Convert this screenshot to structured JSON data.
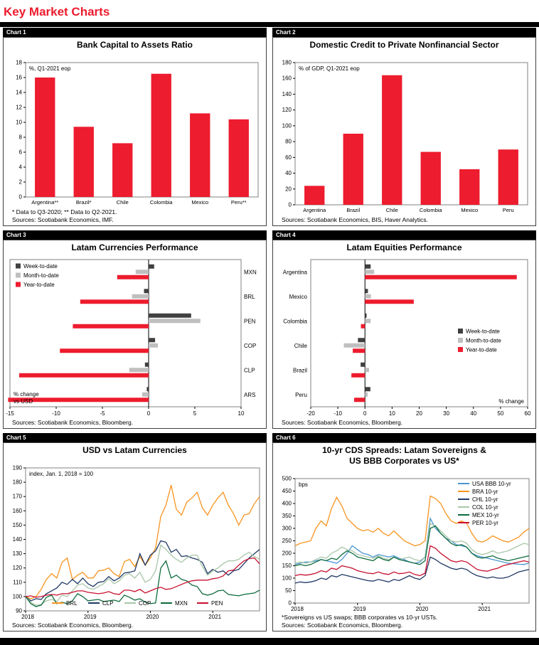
{
  "page": {
    "title": "Key Market Charts"
  },
  "colors": {
    "title_red": "#ED1C2E",
    "week_gray": "#404040",
    "month_gray": "#BFBFBF",
    "bar_red": "#ED1C2E"
  },
  "chart_data": [
    {
      "tag": "Chart 1",
      "type": "bar",
      "title": "Bank Capital to Assets Ratio",
      "unit_label": "%, Q1-2021 eop",
      "categories": [
        "Argentina**",
        "Brazil*",
        "Chile",
        "Colombia",
        "Mexico",
        "Peru**"
      ],
      "values": [
        16.0,
        9.4,
        7.2,
        16.5,
        11.2,
        10.4
      ],
      "ylim": [
        0,
        18
      ],
      "ytick": 2,
      "bar_color": "#ED1C2E",
      "footnote": "* Data to Q3-2020; ** Data to Q2-2021.",
      "sources": "Sources: Scotiabank Economics, IMF."
    },
    {
      "tag": "Chart 2",
      "type": "bar",
      "title": "Domestic Credit to Private Nonfinancial Sector",
      "unit_label": "% of GDP, Q1-2021 eop",
      "categories": [
        "Argentina",
        "Brazil",
        "Chile",
        "Colombia",
        "Mexico",
        "Peru"
      ],
      "values": [
        24,
        90,
        164,
        67,
        45,
        70
      ],
      "ylim": [
        0,
        180
      ],
      "ytick": 20,
      "bar_color": "#ED1C2E",
      "sources": "Sources: Scotiabank Economics, BIS, Haver Analytics."
    },
    {
      "tag": "Chart 3",
      "type": "hbar",
      "title": "Latam Currencies Performance",
      "categories": [
        "MXN",
        "BRL",
        "PEN",
        "COP",
        "CLP",
        "ARS"
      ],
      "series": [
        {
          "name": "Week-to-date",
          "color": "#404040",
          "values": [
            0.6,
            -0.5,
            4.6,
            0.7,
            -0.4,
            -0.2
          ]
        },
        {
          "name": "Month-to-date",
          "color": "#BFBFBF",
          "values": [
            -1.4,
            -1.8,
            5.6,
            1.0,
            -2.1,
            -0.7
          ]
        },
        {
          "name": "Year-to-date",
          "color": "#ED1C2E",
          "values": [
            -3.4,
            -7.4,
            -8.2,
            -9.6,
            -14.0,
            -15.2
          ]
        }
      ],
      "xlim": [
        -15,
        10
      ],
      "xtick": 5,
      "label_side": "right",
      "legend_pos": "top-left",
      "corner_label": "% change\nvs USD",
      "corner_pos": "bottom-left",
      "sources": "Sources: Scotiabank Economics, Bloomberg."
    },
    {
      "tag": "Chart 4",
      "type": "hbar",
      "title": "Latam Equities Performance",
      "categories": [
        "Argentina",
        "Mexico",
        "Colombia",
        "Chile",
        "Brazil",
        "Peru"
      ],
      "series": [
        {
          "name": "Week-to-date",
          "color": "#404040",
          "values": [
            2.1,
            1.1,
            0.6,
            -2.6,
            -1.6,
            2.0
          ]
        },
        {
          "name": "Month-to-date",
          "color": "#BFBFBF",
          "values": [
            3.4,
            2.2,
            2.1,
            -7.8,
            1.5,
            1.0
          ]
        },
        {
          "name": "Year-to-date",
          "color": "#ED1C2E",
          "values": [
            56.0,
            18.0,
            -1.5,
            -4.5,
            -5.0,
            -4.0
          ]
        }
      ],
      "xlim": [
        -20,
        60
      ],
      "xtick": 10,
      "label_side": "left",
      "legend_pos": "mid-right",
      "corner_label": "% change",
      "corner_pos": "bottom-right",
      "sources": "Sources: Scotiabank Economics, Bloomberg."
    },
    {
      "tag": "Chart 5",
      "type": "line",
      "title": "USD vs Latam Currencies",
      "unit_label": "index, Jan. 1, 2018 = 100",
      "ylim": [
        90,
        190
      ],
      "ytick": 10,
      "x_labels": [
        "2018",
        "2019",
        "2020",
        "2021"
      ],
      "legend_pos": "bottom",
      "series": [
        {
          "name": "BRL",
          "color": "#F79420",
          "values": [
            100,
            98.5,
            100,
            105,
            112,
            116,
            113,
            124,
            127,
            112,
            115,
            117,
            113,
            113,
            118,
            118.5,
            120,
            116,
            114,
            124.5,
            126,
            121,
            128,
            122,
            127,
            134,
            156,
            164,
            178,
            161,
            157,
            166,
            169,
            173,
            162,
            157,
            164,
            169,
            173,
            164,
            158,
            150,
            157,
            158,
            165,
            170
          ]
        },
        {
          "name": "CLP",
          "color": "#1F3864",
          "values": [
            100,
            97,
            98.5,
            98,
            102,
            104,
            106,
            110,
            108.5,
            112,
            109,
            113,
            109,
            107,
            110,
            110.5,
            114,
            111,
            113,
            116.5,
            117,
            118,
            130,
            122,
            129,
            132,
            139,
            138,
            131,
            133,
            128,
            128.5,
            127,
            126,
            124,
            116,
            119,
            117,
            118,
            115,
            118,
            119,
            123,
            127,
            130,
            133
          ]
        },
        {
          "name": "COP",
          "color": "#A9C6A9",
          "values": [
            100,
            96,
            94,
            94.5,
            97,
            98,
            96.5,
            101,
            100,
            104,
            108,
            109,
            106,
            105,
            107,
            109,
            112.5,
            109,
            111,
            115,
            116,
            113,
            117,
            110,
            112,
            118,
            136,
            133,
            129,
            126,
            124,
            127,
            129,
            129,
            121,
            115,
            118,
            120,
            123,
            125,
            125,
            126,
            129,
            131,
            128,
            126
          ]
        },
        {
          "name": "MXN",
          "color": "#0E6B3D",
          "values": [
            100,
            95,
            93,
            94,
            99.5,
            101,
            95,
            96,
            95,
            97,
            102,
            100,
            97,
            97.5,
            98,
            96.5,
            97,
            97.5,
            96.5,
            101,
            99.5,
            97.5,
            98.5,
            96,
            95,
            95.5,
            120,
            125,
            113,
            115,
            112,
            111,
            108,
            107,
            102,
            101,
            102,
            104,
            104.5,
            101.5,
            101,
            100.5,
            101.5,
            102,
            102.5,
            104.5
          ]
        },
        {
          "name": "PEN",
          "color": "#C8102E",
          "values": [
            100,
            100.5,
            99.5,
            100,
            101,
            101.5,
            101,
            102,
            102,
            103,
            104,
            104,
            103,
            102.5,
            102,
            102.5,
            103.5,
            102,
            101.5,
            104.5,
            104.5,
            103.5,
            105,
            102.5,
            104,
            105.5,
            106.5,
            105,
            105.5,
            107,
            108.5,
            110,
            111,
            111.5,
            111.5,
            111.5,
            112.5,
            113,
            114.5,
            118,
            118.5,
            122,
            125,
            126.5,
            127,
            123
          ]
        }
      ],
      "sources": "Sources: Scotiabank Economics, Bloomberg."
    },
    {
      "tag": "Chart 6",
      "type": "line",
      "title": "10-yr CDS Spreads: Latam Sovereigns &\nUS BBB Corporates vs US*",
      "unit_label": "bps",
      "ylim": [
        0,
        500
      ],
      "ytick": 50,
      "x_labels": [
        "2018",
        "2019",
        "2020",
        "2021"
      ],
      "legend_pos": "top-right",
      "series": [
        {
          "name": "USA BBB 10-yr",
          "color": "#4A96D2",
          "values": [
            155,
            160,
            165,
            165,
            170,
            175,
            170,
            165,
            160,
            175,
            200,
            230,
            215,
            200,
            195,
            185,
            195,
            190,
            185,
            190,
            180,
            175,
            165,
            160,
            165,
            185,
            340,
            300,
            280,
            260,
            250,
            235,
            230,
            225,
            200,
            190,
            185,
            180,
            175,
            170,
            165,
            160,
            158,
            156,
            155,
            160
          ]
        },
        {
          "name": "BRA 10-yr",
          "color": "#F79420",
          "values": [
            230,
            240,
            245,
            250,
            300,
            330,
            310,
            380,
            425,
            390,
            340,
            320,
            300,
            290,
            295,
            285,
            300,
            280,
            270,
            290,
            270,
            250,
            240,
            230,
            235,
            250,
            430,
            420,
            400,
            360,
            330,
            320,
            330,
            320,
            280,
            250,
            245,
            255,
            270,
            260,
            250,
            245,
            255,
            265,
            285,
            300
          ]
        },
        {
          "name": "CHL 10-yr",
          "color": "#1F3864",
          "values": [
            80,
            85,
            82,
            85,
            90,
            100,
            95,
            110,
            105,
            115,
            110,
            105,
            100,
            95,
            90,
            88,
            95,
            90,
            85,
            95,
            90,
            100,
            110,
            100,
            95,
            110,
            185,
            175,
            160,
            150,
            140,
            135,
            140,
            135,
            120,
            110,
            105,
            100,
            105,
            100,
            100,
            105,
            115,
            125,
            130,
            135
          ]
        },
        {
          "name": "COL 10-yr",
          "color": "#A9C6A9",
          "values": [
            160,
            165,
            160,
            165,
            175,
            185,
            180,
            200,
            210,
            225,
            215,
            210,
            195,
            190,
            185,
            180,
            190,
            180,
            175,
            185,
            175,
            180,
            185,
            175,
            170,
            185,
            320,
            310,
            290,
            270,
            250,
            245,
            250,
            240,
            215,
            200,
            195,
            200,
            210,
            200,
            205,
            210,
            220,
            230,
            240,
            235
          ]
        },
        {
          "name": "MEX 10-yr",
          "color": "#0E6B3D",
          "values": [
            150,
            155,
            150,
            155,
            165,
            175,
            170,
            180,
            175,
            195,
            210,
            200,
            185,
            180,
            175,
            170,
            185,
            175,
            170,
            185,
            175,
            170,
            165,
            160,
            155,
            170,
            300,
            310,
            280,
            260,
            240,
            230,
            235,
            225,
            200,
            185,
            180,
            185,
            190,
            180,
            175,
            170,
            175,
            180,
            185,
            190
          ]
        },
        {
          "name": "PER 10-yr",
          "color": "#C8102E",
          "values": [
            110,
            115,
            112,
            115,
            120,
            130,
            125,
            140,
            135,
            150,
            145,
            140,
            130,
            125,
            120,
            118,
            125,
            118,
            115,
            125,
            118,
            120,
            125,
            115,
            110,
            120,
            230,
            220,
            200,
            185,
            170,
            165,
            170,
            165,
            150,
            135,
            130,
            128,
            135,
            140,
            150,
            155,
            160,
            165,
            170,
            165
          ]
        }
      ],
      "footnote": "*Sovereigns vs US swaps; BBB corporates vs 10-yr USTs.",
      "sources": "Sources: Scotiabank Economics, Bloomberg."
    }
  ]
}
